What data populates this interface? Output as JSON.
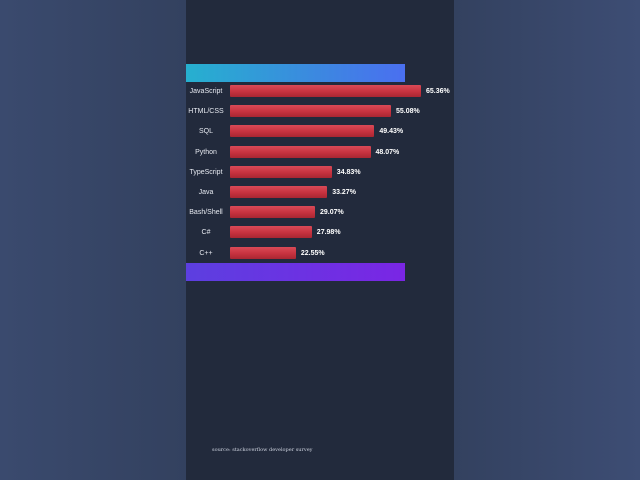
{
  "chart_data": {
    "type": "bar",
    "orientation": "horizontal",
    "categories": [
      "JavaScript",
      "HTML/CSS",
      "SQL",
      "Python",
      "TypeScript",
      "Java",
      "Bash/Shell",
      "C#",
      "C++"
    ],
    "values": [
      65.36,
      55.08,
      49.43,
      48.07,
      34.83,
      33.27,
      29.07,
      27.98,
      22.55
    ],
    "value_labels": [
      "65.36%",
      "55.08%",
      "49.43%",
      "48.07%",
      "34.83%",
      "33.27%",
      "29.07%",
      "27.98%",
      "22.55%"
    ],
    "xlim": [
      0,
      65.36
    ],
    "title": "",
    "xlabel": "",
    "ylabel": "",
    "grid": false,
    "bar_color": "#c7323f"
  },
  "footer": {
    "source": "source: stackoverflow developer survey"
  },
  "colors": {
    "panel": "#222a3c",
    "band_top": "#3c88e0",
    "band_bottom": "#7a26e4"
  }
}
